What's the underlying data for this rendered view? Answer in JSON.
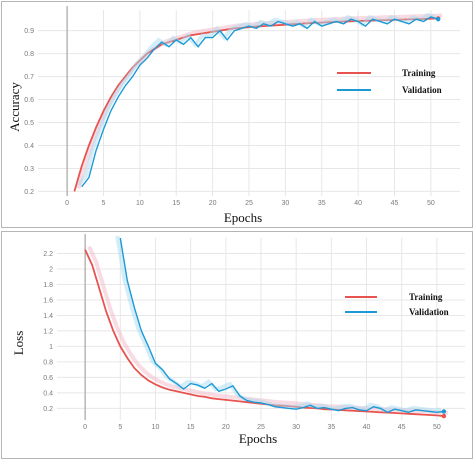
{
  "colors": {
    "training": "#e8534f",
    "validation": "#1c9ad6",
    "training_faint": "#f4b7c8",
    "validation_faint": "#a9dcf2",
    "grid": "#e7e7e7",
    "zero_line": "#a6a6a6"
  },
  "chart_data": [
    {
      "type": "line",
      "xlabel": "Epochs",
      "ylabel": "Accuracy",
      "xlim": [
        -4,
        54
      ],
      "ylim": [
        0.18,
        0.99
      ],
      "xticks": [
        "0",
        "5",
        "10",
        "15",
        "20",
        "25",
        "30",
        "35",
        "40",
        "45",
        "50"
      ],
      "yticks": [
        "0.2",
        "0.3",
        "0.4",
        "0.5",
        "0.6",
        "0.7",
        "0.8",
        "0.9"
      ],
      "grid": true,
      "legend_position": "center-right",
      "series": [
        {
          "name": "Training",
          "x": [
            1,
            2,
            3,
            4,
            5,
            6,
            7,
            8,
            9,
            10,
            11,
            12,
            13,
            14,
            15,
            16,
            17,
            18,
            19,
            20,
            21,
            22,
            23,
            24,
            25,
            26,
            27,
            28,
            29,
            30,
            31,
            32,
            33,
            34,
            35,
            36,
            37,
            38,
            39,
            40,
            41,
            42,
            43,
            44,
            45,
            46,
            47,
            48,
            49,
            50,
            51
          ],
          "values": [
            0.2,
            0.31,
            0.4,
            0.48,
            0.55,
            0.61,
            0.66,
            0.7,
            0.74,
            0.77,
            0.8,
            0.82,
            0.84,
            0.85,
            0.86,
            0.87,
            0.88,
            0.885,
            0.89,
            0.895,
            0.9,
            0.905,
            0.91,
            0.912,
            0.915,
            0.918,
            0.92,
            0.922,
            0.924,
            0.926,
            0.928,
            0.93,
            0.932,
            0.934,
            0.935,
            0.937,
            0.938,
            0.94,
            0.941,
            0.942,
            0.943,
            0.944,
            0.945,
            0.946,
            0.947,
            0.948,
            0.949,
            0.95,
            0.951,
            0.952,
            0.953
          ]
        },
        {
          "name": "Validation",
          "x": [
            2,
            3,
            4,
            5,
            6,
            7,
            8,
            9,
            10,
            11,
            12,
            13,
            14,
            15,
            16,
            17,
            18,
            19,
            20,
            21,
            22,
            23,
            24,
            25,
            26,
            27,
            28,
            29,
            30,
            31,
            32,
            33,
            34,
            35,
            36,
            37,
            38,
            39,
            40,
            41,
            42,
            43,
            44,
            45,
            46,
            47,
            48,
            49,
            50,
            51
          ],
          "values": [
            0.22,
            0.26,
            0.38,
            0.47,
            0.55,
            0.61,
            0.66,
            0.7,
            0.75,
            0.78,
            0.82,
            0.85,
            0.83,
            0.86,
            0.84,
            0.87,
            0.83,
            0.87,
            0.87,
            0.9,
            0.86,
            0.9,
            0.91,
            0.92,
            0.91,
            0.93,
            0.92,
            0.94,
            0.93,
            0.92,
            0.93,
            0.91,
            0.94,
            0.92,
            0.93,
            0.94,
            0.93,
            0.95,
            0.94,
            0.92,
            0.95,
            0.94,
            0.93,
            0.95,
            0.94,
            0.93,
            0.95,
            0.94,
            0.96,
            0.95
          ]
        }
      ]
    },
    {
      "type": "line",
      "xlabel": "Epochs",
      "ylabel": "Loss",
      "xlim": [
        -4,
        54
      ],
      "ylim": [
        0.05,
        2.4
      ],
      "xticks": [
        "0",
        "5",
        "10",
        "15",
        "20",
        "25",
        "30",
        "35",
        "40",
        "45",
        "50"
      ],
      "yticks": [
        "0.2",
        "0.4",
        "0.6",
        "0.8",
        "1",
        "1.2",
        "1.4",
        "1.6",
        "1.8",
        "2",
        "2.2"
      ],
      "grid": true,
      "legend_position": "top-right",
      "series": [
        {
          "name": "Training",
          "x": [
            0,
            1,
            2,
            3,
            4,
            5,
            6,
            7,
            8,
            9,
            10,
            11,
            12,
            13,
            14,
            15,
            16,
            17,
            18,
            19,
            20,
            21,
            22,
            23,
            24,
            25,
            26,
            27,
            28,
            29,
            30,
            31,
            32,
            33,
            34,
            35,
            36,
            37,
            38,
            39,
            40,
            41,
            42,
            43,
            44,
            45,
            46,
            47,
            48,
            49,
            50,
            51
          ],
          "values": [
            2.25,
            2.05,
            1.75,
            1.45,
            1.2,
            1.0,
            0.85,
            0.72,
            0.63,
            0.56,
            0.51,
            0.47,
            0.44,
            0.42,
            0.4,
            0.38,
            0.36,
            0.35,
            0.33,
            0.32,
            0.31,
            0.3,
            0.29,
            0.28,
            0.27,
            0.26,
            0.25,
            0.24,
            0.235,
            0.23,
            0.22,
            0.21,
            0.205,
            0.2,
            0.19,
            0.185,
            0.18,
            0.175,
            0.17,
            0.165,
            0.16,
            0.155,
            0.15,
            0.145,
            0.14,
            0.135,
            0.13,
            0.125,
            0.12,
            0.115,
            0.11,
            0.1
          ]
        },
        {
          "name": "Validation",
          "x": [
            5,
            6,
            7,
            8,
            9,
            10,
            11,
            12,
            13,
            14,
            15,
            16,
            17,
            18,
            19,
            20,
            21,
            22,
            23,
            24,
            25,
            26,
            27,
            28,
            29,
            30,
            31,
            32,
            33,
            34,
            35,
            36,
            37,
            38,
            39,
            40,
            41,
            42,
            43,
            44,
            45,
            46,
            47,
            48,
            49,
            50,
            51
          ],
          "values": [
            2.4,
            1.85,
            1.5,
            1.2,
            1.0,
            0.78,
            0.7,
            0.58,
            0.52,
            0.45,
            0.52,
            0.5,
            0.46,
            0.52,
            0.42,
            0.45,
            0.49,
            0.36,
            0.3,
            0.28,
            0.27,
            0.25,
            0.22,
            0.21,
            0.2,
            0.19,
            0.21,
            0.24,
            0.2,
            0.21,
            0.19,
            0.17,
            0.2,
            0.21,
            0.18,
            0.17,
            0.22,
            0.2,
            0.15,
            0.19,
            0.17,
            0.15,
            0.18,
            0.17,
            0.16,
            0.15,
            0.16
          ]
        }
      ]
    }
  ]
}
